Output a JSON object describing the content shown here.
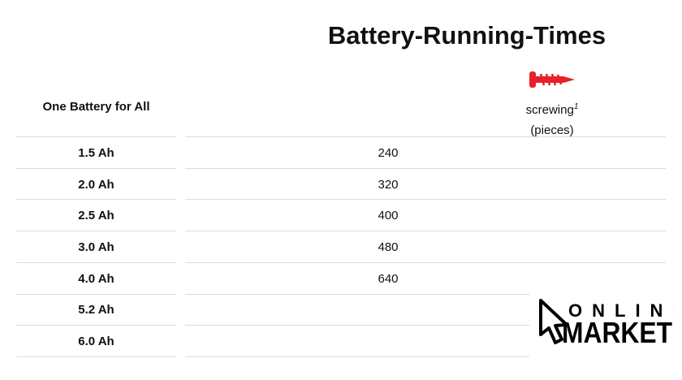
{
  "title": "Battery-Running-Times",
  "columns": {
    "left_header": "One Battery for All",
    "right_header_line1": "screwing",
    "right_header_footnote": "1",
    "right_header_line2": "(pieces)",
    "right_icon": "screw-icon",
    "icon_color": "#e8202a"
  },
  "rows": [
    {
      "battery": "1.5 Ah",
      "pieces": "240"
    },
    {
      "battery": "2.0 Ah",
      "pieces": "320"
    },
    {
      "battery": "2.5 Ah",
      "pieces": "400"
    },
    {
      "battery": "3.0 Ah",
      "pieces": "480"
    },
    {
      "battery": "4.0 Ah",
      "pieces": "640"
    },
    {
      "battery": "5.2 Ah",
      "pieces": ""
    },
    {
      "battery": "6.0 Ah",
      "pieces": ""
    }
  ],
  "watermark": {
    "line1": "ONLINE",
    "line2": "MARKET",
    "icon": "cursor-arrow-icon"
  }
}
